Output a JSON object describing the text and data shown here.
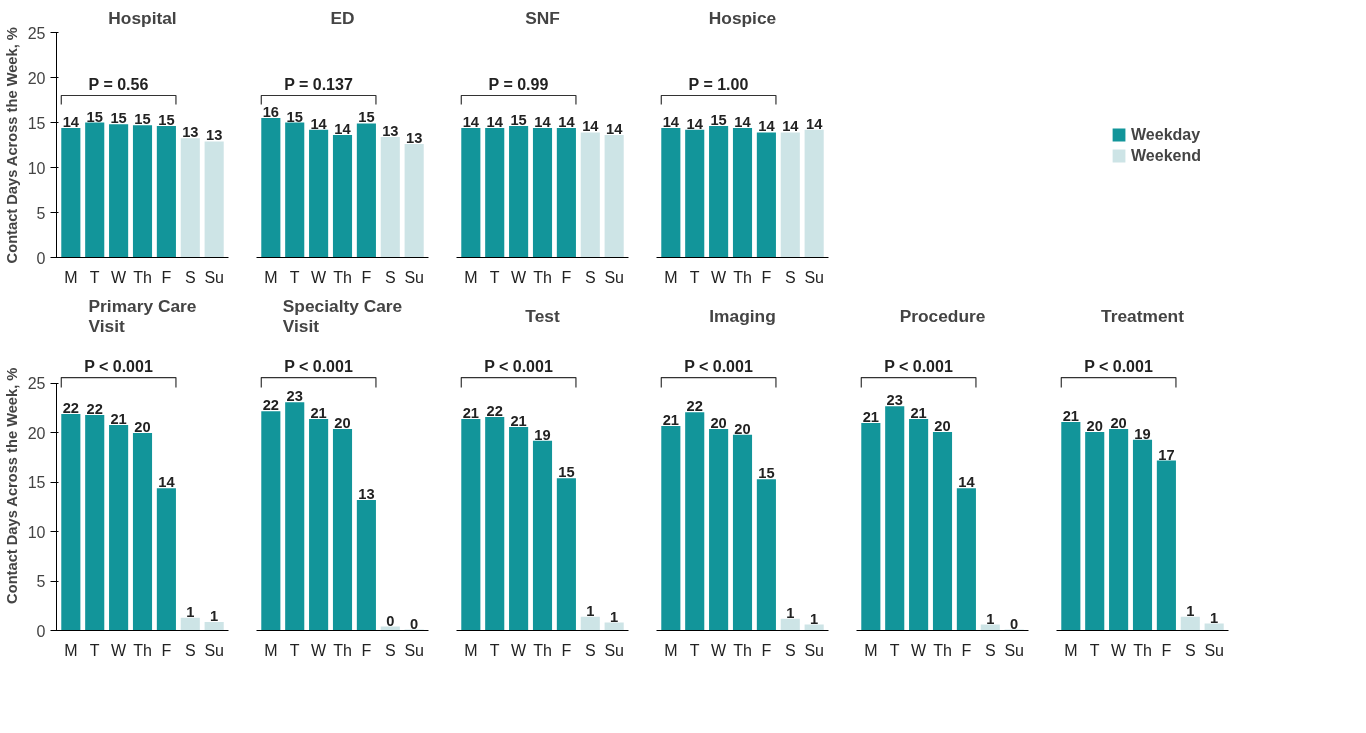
{
  "chart_data": [
    {
      "type": "bar",
      "title": "Hospital",
      "ylabel": "Contact Days Across the Week, %",
      "categories": [
        "M",
        "T",
        "W",
        "Th",
        "F",
        "S",
        "Su"
      ],
      "ylim": [
        0,
        25
      ],
      "yticks": [
        0,
        5,
        10,
        15,
        20,
        25
      ],
      "annotations": [
        "P = 0.56"
      ],
      "series": [
        {
          "color": "#12959a",
          "values": [
            14.4,
            15.0,
            14.8,
            14.7,
            14.6,
            null,
            null
          ],
          "value_labels": [
            "14",
            "15",
            "15",
            "15",
            "15",
            null,
            null
          ]
        },
        {
          "color": "#cde4e6",
          "values": [
            null,
            null,
            null,
            null,
            null,
            13.25,
            12.9
          ],
          "value_labels": [
            null,
            null,
            null,
            null,
            null,
            "13",
            "13"
          ]
        }
      ]
    },
    {
      "type": "bar",
      "title": "ED",
      "categories": [
        "M",
        "T",
        "W",
        "Th",
        "F",
        "S",
        "Su"
      ],
      "ylim": [
        0,
        25
      ],
      "yticks": [
        0,
        5,
        10,
        15,
        20,
        25
      ],
      "tick_labels": "x",
      "annotations": [
        "P = 0.137"
      ],
      "series": [
        {
          "color": "#12959a",
          "values": [
            15.5,
            15.0,
            14.2,
            13.6,
            14.9,
            null,
            null
          ],
          "value_labels": [
            "16",
            "15",
            "14",
            "14",
            "15",
            null,
            null
          ]
        },
        {
          "color": "#cde4e6",
          "values": [
            null,
            null,
            null,
            null,
            null,
            13.4,
            12.6
          ],
          "value_labels": [
            null,
            null,
            null,
            null,
            null,
            "13",
            "13"
          ]
        }
      ]
    },
    {
      "type": "bar",
      "title": "SNF",
      "categories": [
        "M",
        "T",
        "W",
        "Th",
        "F",
        "S",
        "Su"
      ],
      "ylim": [
        0,
        25
      ],
      "yticks": [
        0,
        5,
        10,
        15,
        20,
        25
      ],
      "tick_labels": "x",
      "annotations": [
        "P = 0.99"
      ],
      "series": [
        {
          "color": "#12959a",
          "values": [
            14.4,
            14.4,
            14.6,
            14.4,
            14.4,
            null,
            null
          ],
          "value_labels": [
            "14",
            "14",
            "15",
            "14",
            "14",
            null,
            null
          ]
        },
        {
          "color": "#cde4e6",
          "values": [
            null,
            null,
            null,
            null,
            null,
            13.9,
            13.6
          ],
          "value_labels": [
            null,
            null,
            null,
            null,
            null,
            "14",
            "14"
          ]
        }
      ]
    },
    {
      "type": "bar",
      "title": "Hospice",
      "categories": [
        "M",
        "T",
        "W",
        "Th",
        "F",
        "S",
        "Su"
      ],
      "ylim": [
        0,
        25
      ],
      "yticks": [
        0,
        5,
        10,
        15,
        20,
        25
      ],
      "tick_labels": "x",
      "annotations": [
        "P = 1.00"
      ],
      "legend": "right",
      "series": [
        {
          "name": "Weekday",
          "color": "#12959a",
          "values": [
            14.4,
            14.2,
            14.6,
            14.4,
            13.9,
            null,
            null
          ],
          "value_labels": [
            "14",
            "14",
            "15",
            "14",
            "14",
            null,
            null
          ]
        },
        {
          "name": "Weekend",
          "color": "#cde4e6",
          "values": [
            null,
            null,
            null,
            null,
            null,
            13.9,
            14.2
          ],
          "value_labels": [
            null,
            null,
            null,
            null,
            null,
            "14",
            "14"
          ]
        }
      ]
    },
    {
      "type": "bar",
      "title": "Primary Care\nVisit",
      "ylabel": "Contact Days Across the Week, %",
      "categories": [
        "M",
        "T",
        "W",
        "Th",
        "F",
        "S",
        "Su"
      ],
      "ylim": [
        0,
        25
      ],
      "yticks": [
        0,
        5,
        10,
        15,
        20,
        25
      ],
      "annotations": [
        "P < 0.001"
      ],
      "series": [
        {
          "color": "#12959a",
          "values": [
            21.9,
            21.8,
            20.8,
            20.0,
            14.4,
            null,
            null
          ],
          "value_labels": [
            "22",
            "22",
            "21",
            "20",
            "14",
            null,
            null
          ]
        },
        {
          "color": "#cde4e6",
          "values": [
            null,
            null,
            null,
            null,
            null,
            1.3,
            0.85
          ],
          "value_labels": [
            null,
            null,
            null,
            null,
            null,
            "1",
            "1"
          ]
        }
      ]
    },
    {
      "type": "bar",
      "title": "Specialty Care\nVisit",
      "categories": [
        "M",
        "T",
        "W",
        "Th",
        "F",
        "S",
        "Su"
      ],
      "ylim": [
        0,
        25
      ],
      "yticks": [
        0,
        5,
        10,
        15,
        20,
        25
      ],
      "tick_labels": "x",
      "annotations": [
        "P < 0.001"
      ],
      "series": [
        {
          "color": "#12959a",
          "values": [
            22.2,
            23.1,
            21.4,
            20.4,
            13.2,
            null,
            null
          ],
          "value_labels": [
            "22",
            "23",
            "21",
            "20",
            "13",
            null,
            null
          ]
        },
        {
          "color": "#cde4e6",
          "values": [
            null,
            null,
            null,
            null,
            null,
            0.4,
            0.1
          ],
          "value_labels": [
            null,
            null,
            null,
            null,
            null,
            "0",
            "0"
          ]
        }
      ]
    },
    {
      "type": "bar",
      "title": "Test",
      "categories": [
        "M",
        "T",
        "W",
        "Th",
        "F",
        "S",
        "Su"
      ],
      "ylim": [
        0,
        25
      ],
      "yticks": [
        0,
        5,
        10,
        15,
        20,
        25
      ],
      "tick_labels": "x",
      "annotations": [
        "P < 0.001"
      ],
      "series": [
        {
          "color": "#12959a",
          "values": [
            21.4,
            21.6,
            20.6,
            19.2,
            15.4,
            null,
            null
          ],
          "value_labels": [
            "21",
            "22",
            "21",
            "19",
            "15",
            null,
            null
          ]
        },
        {
          "color": "#cde4e6",
          "values": [
            null,
            null,
            null,
            null,
            null,
            1.4,
            0.8
          ],
          "value_labels": [
            null,
            null,
            null,
            null,
            null,
            "1",
            "1"
          ]
        }
      ]
    },
    {
      "type": "bar",
      "title": "Imaging",
      "categories": [
        "M",
        "T",
        "W",
        "Th",
        "F",
        "S",
        "Su"
      ],
      "ylim": [
        0,
        25
      ],
      "yticks": [
        0,
        5,
        10,
        15,
        20,
        25
      ],
      "tick_labels": "x",
      "annotations": [
        "P < 0.001"
      ],
      "series": [
        {
          "color": "#12959a",
          "values": [
            20.7,
            22.1,
            20.4,
            19.8,
            15.3,
            null,
            null
          ],
          "value_labels": [
            "21",
            "22",
            "20",
            "20",
            "15",
            null,
            null
          ]
        },
        {
          "color": "#cde4e6",
          "values": [
            null,
            null,
            null,
            null,
            null,
            1.2,
            0.6
          ],
          "value_labels": [
            null,
            null,
            null,
            null,
            null,
            "1",
            "1"
          ]
        }
      ]
    },
    {
      "type": "bar",
      "title": "Procedure",
      "categories": [
        "M",
        "T",
        "W",
        "Th",
        "F",
        "S",
        "Su"
      ],
      "ylim": [
        0,
        25
      ],
      "yticks": [
        0,
        5,
        10,
        15,
        20,
        25
      ],
      "tick_labels": "x",
      "annotations": [
        "P < 0.001"
      ],
      "series": [
        {
          "color": "#12959a",
          "values": [
            21.0,
            22.7,
            21.4,
            20.1,
            14.4,
            null,
            null
          ],
          "value_labels": [
            "21",
            "23",
            "21",
            "20",
            "14",
            null,
            null
          ]
        },
        {
          "color": "#cde4e6",
          "values": [
            null,
            null,
            null,
            null,
            null,
            0.6,
            0.1
          ],
          "value_labels": [
            null,
            null,
            null,
            null,
            null,
            "1",
            "0"
          ]
        }
      ]
    },
    {
      "type": "bar",
      "title": "Treatment",
      "categories": [
        "M",
        "T",
        "W",
        "Th",
        "F",
        "S",
        "Su"
      ],
      "ylim": [
        0,
        25
      ],
      "yticks": [
        0,
        5,
        10,
        15,
        20,
        25
      ],
      "tick_labels": "x",
      "annotations": [
        "P < 0.001"
      ],
      "series": [
        {
          "color": "#12959a",
          "values": [
            21.1,
            20.1,
            20.4,
            19.3,
            17.2,
            null,
            null
          ],
          "value_labels": [
            "21",
            "20",
            "20",
            "19",
            "17",
            null,
            null
          ]
        },
        {
          "color": "#cde4e6",
          "values": [
            null,
            null,
            null,
            null,
            null,
            1.4,
            0.7
          ],
          "value_labels": [
            null,
            null,
            null,
            null,
            null,
            "1",
            "1"
          ]
        }
      ]
    }
  ]
}
